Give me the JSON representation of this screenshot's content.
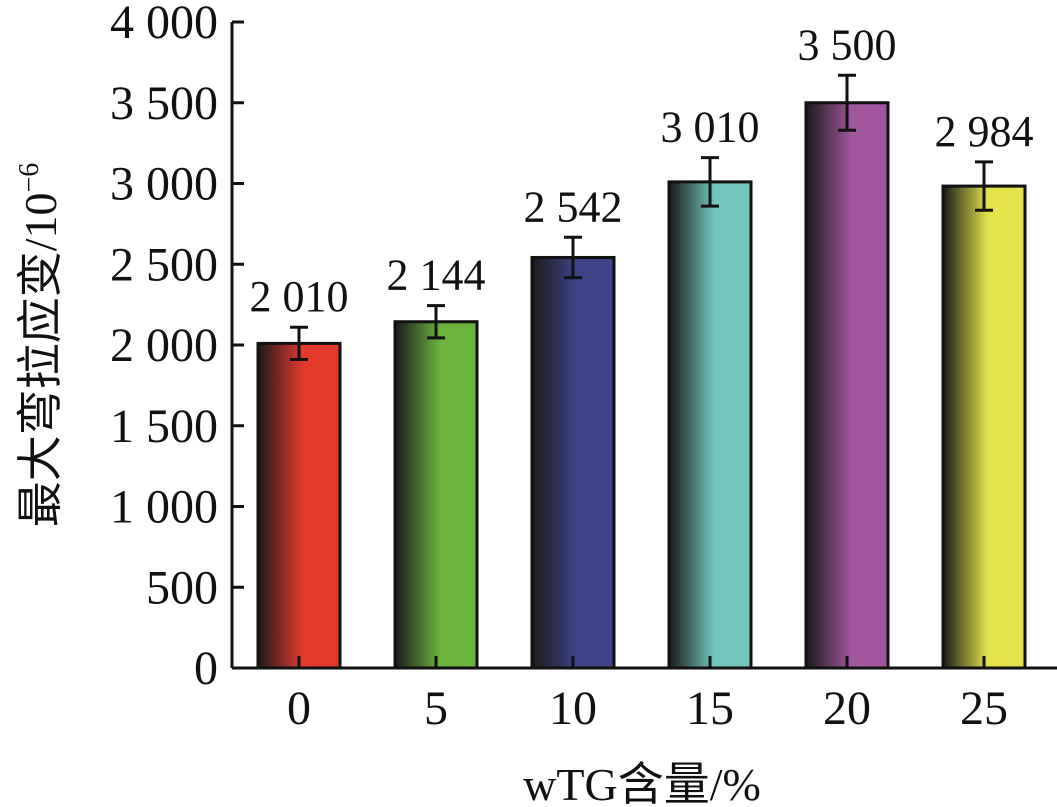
{
  "chart_data": {
    "type": "bar",
    "categories": [
      "0",
      "5",
      "10",
      "15",
      "20",
      "25"
    ],
    "values": [
      2010,
      2144,
      2542,
      3010,
      3500,
      2984
    ],
    "error": [
      100,
      100,
      125,
      150,
      170,
      150
    ],
    "value_labels": [
      "2 010",
      "2 144",
      "2 542",
      "3 010",
      "3 500",
      "2 984"
    ],
    "colors": [
      "#e33a2e",
      "#6ab43e",
      "#3e4487",
      "#72c6be",
      "#a0559c",
      "#e3e44b"
    ],
    "xlabel": "wTG含量/%",
    "ylabel": "最大弯拉应变/10",
    "ylabel_sup": "−6",
    "ylim": [
      0,
      4000
    ],
    "yticks": [
      0,
      500,
      1000,
      1500,
      2000,
      2500,
      3000,
      3500,
      4000
    ],
    "ytick_labels": [
      "0",
      "500",
      "1 000",
      "1 500",
      "2 000",
      "2 500",
      "3 000",
      "3 500",
      "4 000"
    ],
    "grid": false,
    "legend": "none"
  }
}
